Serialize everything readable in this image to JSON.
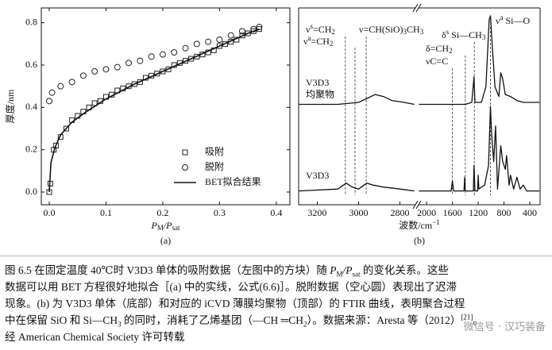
{
  "chart_data": [
    {
      "type": "scatter",
      "xlabel": [
        {
          "t": "P"
        },
        {
          "t": "M",
          "pos": "sub"
        },
        {
          "t": "/P"
        },
        {
          "t": "sat",
          "pos": "sub"
        }
      ],
      "ylabel": "厚度/nm",
      "panel": "(a)",
      "xlim": [
        -0.014,
        0.424
      ],
      "ylim": [
        -0.06,
        0.87
      ],
      "xticks": [
        {
          "value": 0,
          "label": "0.0"
        },
        0.1,
        0.2,
        0.3,
        0.4
      ],
      "yticks": [
        {
          "value": 0,
          "label": "0.0"
        },
        0.2,
        0.4,
        0.6,
        0.8
      ],
      "legend": "lower right",
      "series": [
        {
          "name": "吸附",
          "marker": "square",
          "color": "#222222",
          "x": [
            0,
            0.002,
            0.008,
            0.012,
            0.02,
            0.03,
            0.04,
            0.05,
            0.06,
            0.07,
            0.08,
            0.09,
            0.1,
            0.11,
            0.12,
            0.13,
            0.14,
            0.15,
            0.16,
            0.17,
            0.18,
            0.19,
            0.2,
            0.21,
            0.22,
            0.23,
            0.24,
            0.25,
            0.26,
            0.27,
            0.28,
            0.29,
            0.3,
            0.31,
            0.32,
            0.33,
            0.34,
            0.35,
            0.36,
            0.37
          ],
          "values": [
            0,
            0.04,
            0.2,
            0.22,
            0.26,
            0.3,
            0.34,
            0.36,
            0.38,
            0.4,
            0.42,
            0.43,
            0.45,
            0.46,
            0.48,
            0.49,
            0.5,
            0.51,
            0.52,
            0.54,
            0.55,
            0.56,
            0.57,
            0.58,
            0.6,
            0.61,
            0.62,
            0.63,
            0.64,
            0.65,
            0.66,
            0.67,
            0.69,
            0.7,
            0.71,
            0.72,
            0.74,
            0.75,
            0.76,
            0.77
          ]
        },
        {
          "name": "脱附",
          "marker": "circle",
          "color": "#222222",
          "x": [
            0,
            0.005,
            0.02,
            0.04,
            0.06,
            0.08,
            0.1,
            0.12,
            0.14,
            0.16,
            0.18,
            0.2,
            0.22,
            0.24,
            0.26,
            0.28,
            0.3,
            0.32,
            0.34,
            0.36,
            0.37
          ],
          "values": [
            0.43,
            0.47,
            0.5,
            0.52,
            0.55,
            0.57,
            0.58,
            0.59,
            0.61,
            0.62,
            0.64,
            0.65,
            0.66,
            0.68,
            0.7,
            0.71,
            0.72,
            0.74,
            0.76,
            0.77,
            0.78
          ]
        },
        {
          "name": "BET拟合结果",
          "marker": "line",
          "color": "#111111",
          "x": [
            0,
            0.003,
            0.01,
            0.02,
            0.04,
            0.06,
            0.1,
            0.15,
            0.2,
            0.25,
            0.3,
            0.35,
            0.37
          ],
          "values": [
            0,
            0.14,
            0.21,
            0.27,
            0.33,
            0.37,
            0.44,
            0.51,
            0.57,
            0.63,
            0.69,
            0.75,
            0.77
          ]
        }
      ]
    },
    {
      "type": "spectrum",
      "xlabel": [
        {
          "t": "波数/cm"
        },
        {
          "t": "−1",
          "pos": "sup"
        }
      ],
      "panel": "(b)",
      "axis_break": true,
      "segments": [
        {
          "xlim": [
            3290,
            2725
          ],
          "xticks": [
            3200,
            3000,
            2800
          ]
        },
        {
          "xlim": [
            2125,
            240
          ],
          "xticks": [
            2000,
            1600,
            1200,
            800,
            400
          ]
        }
      ],
      "ylim": [
        0,
        100
      ],
      "series": [
        {
          "label": [
            "V3D3",
            "均聚物"
          ],
          "color": "#111111",
          "x": [
            3290,
            3100,
            3000,
            2960,
            2920,
            2880,
            2840,
            2780,
            2730,
            null,
            2120,
            1800,
            1600,
            1400,
            1300,
            1265,
            1250,
            1150,
            1080,
            1030,
            1010,
            980,
            940,
            880,
            850,
            820,
            780,
            700,
            600,
            500,
            400,
            250
          ],
          "values": [
            51,
            51,
            52,
            54,
            56,
            55,
            53,
            52,
            51,
            null,
            51,
            51,
            51,
            51,
            52,
            65,
            52,
            52,
            60,
            94,
            96,
            80,
            60,
            55,
            67,
            64,
            56,
            55,
            53,
            52,
            52,
            52
          ]
        },
        {
          "label": [
            "V3D3"
          ],
          "color": "#111111",
          "x": [
            3290,
            3100,
            3060,
            3030,
            3000,
            2960,
            2930,
            2880,
            2800,
            2730,
            null,
            2120,
            1800,
            1620,
            1600,
            1580,
            1420,
            1410,
            1400,
            1275,
            1265,
            1250,
            1210,
            1200,
            1190,
            1150,
            1100,
            1040,
            1010,
            990,
            960,
            930,
            900,
            850,
            820,
            780,
            760,
            720,
            700,
            650,
            600,
            550,
            500,
            450,
            250
          ],
          "values": [
            7,
            8,
            11,
            9,
            8,
            11,
            10,
            9,
            8,
            7,
            null,
            7,
            7,
            7,
            12,
            7,
            7,
            14,
            7,
            7,
            20,
            7,
            7,
            15,
            8,
            9,
            10,
            20,
            50,
            35,
            22,
            40,
            8,
            30,
            22,
            18,
            25,
            10,
            15,
            8,
            14,
            8,
            10,
            7,
            7
          ]
        }
      ],
      "annotations": [
        {
          "x": 3064,
          "label": [
            {
              "t": "ν"
            },
            {
              "t": "s",
              "pos": "sup"
            },
            {
              "t": "=CH"
            },
            {
              "t": "2",
              "pos": "sub"
            }
          ]
        },
        {
          "x": 3017,
          "label": [
            {
              "t": "ν"
            },
            {
              "t": "a",
              "pos": "sup"
            },
            {
              "t": "=CH"
            },
            {
              "t": "2",
              "pos": "sub"
            }
          ]
        },
        {
          "x": 2963,
          "label": [
            {
              "t": "ν=CH(SiO)"
            },
            {
              "t": "3",
              "pos": "sub"
            },
            {
              "t": "CH"
            },
            {
              "t": "3",
              "pos": "sub"
            }
          ]
        },
        {
          "x": 1600,
          "label": [
            {
              "t": "νC=C"
            }
          ]
        },
        {
          "x": 1400,
          "label": [
            {
              "t": "δ=CH"
            },
            {
              "t": "2",
              "pos": "sub"
            }
          ]
        },
        {
          "x": 1260,
          "label": [
            {
              "t": "δ"
            },
            {
              "t": "s",
              "pos": "sup"
            },
            {
              "t": " Si—CH"
            },
            {
              "t": "3",
              "pos": "sub"
            }
          ]
        },
        {
          "x": 1010,
          "label": [
            {
              "t": "ν"
            },
            {
              "t": "a",
              "pos": "sup"
            },
            {
              "t": " Si—O"
            }
          ]
        }
      ]
    }
  ],
  "caption": [
    [
      {
        "t": "图 6.5  在固定温度 40℃时 V3D3 单体的吸附数据（左图中的方块）随 "
      },
      {
        "t": "P"
      },
      {
        "t": "M",
        "pos": "sub"
      },
      {
        "t": "/P"
      },
      {
        "t": "sat",
        "pos": "sub"
      },
      {
        "t": " 的变化关系。这些"
      }
    ],
    [
      {
        "t": "数据可以用 BET 方程很好地拟合［(a) 中的实线，公式(6.6)］。脱附数据（空心圆）表现出了迟滞"
      }
    ],
    [
      {
        "t": "现象。(b) 为 V3D3 单体（底部）和对应的 iCVD 薄膜均聚物（顶部）的 FTIR 曲线，表明聚合过程"
      }
    ],
    [
      {
        "t": "中在保留 SiO 和 Si—CH"
      },
      {
        "t": "3",
        "pos": "sub"
      },
      {
        "t": " 的同时，消耗了乙烯基团（—CH ═CH"
      },
      {
        "t": "2",
        "pos": "sub"
      },
      {
        "t": "）。数据来源：Aresta 等（2012）"
      },
      {
        "t": "[21]",
        "pos": "sup"
      },
      {
        "t": "。"
      }
    ],
    [
      {
        "t": "经 American Chemical Society 许可转载"
      }
    ]
  ],
  "watermark": "微信号 · 汉巧装备"
}
